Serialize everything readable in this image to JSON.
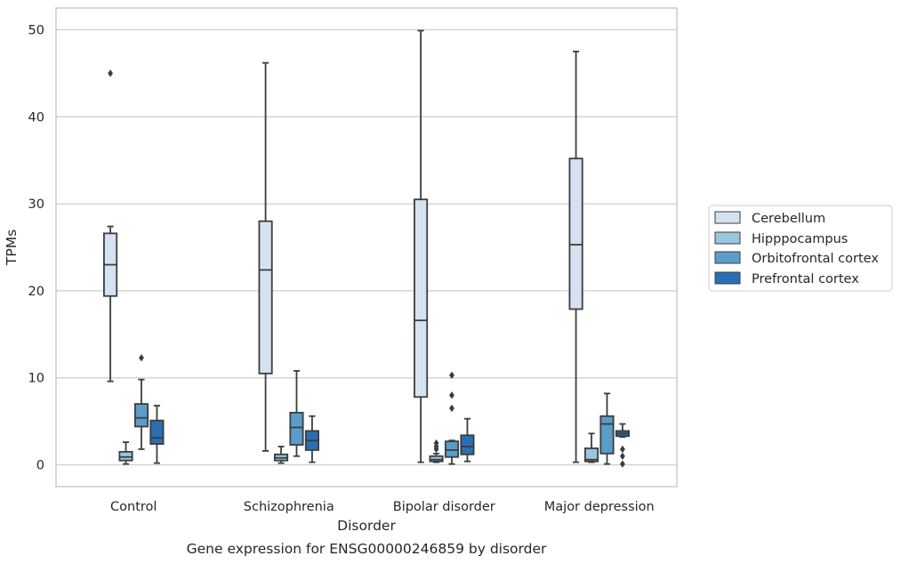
{
  "chart_data": {
    "type": "box",
    "caption": "Gene expression for ENSG00000246859 by disorder",
    "xlabel": "Disorder",
    "ylabel": "TPMs",
    "ylim": [
      -2.5,
      52.5
    ],
    "yticks": [
      0,
      10,
      20,
      30,
      40,
      50
    ],
    "grid": "horizontal",
    "legend_position": "outside-right",
    "categories": [
      "Control",
      "Schizophrenia",
      "Bipolar disorder",
      "Major depression"
    ],
    "series": [
      {
        "name": "Cerebellum",
        "color": "#d5e3f1",
        "boxes": [
          {
            "whisker_low": 9.6,
            "q1": 19.4,
            "median": 23.0,
            "q3": 26.6,
            "whisker_high": 27.4,
            "outliers": [
              45.0
            ]
          },
          {
            "whisker_low": 1.6,
            "q1": 10.5,
            "median": 22.4,
            "q3": 28.0,
            "whisker_high": 46.2,
            "outliers": []
          },
          {
            "whisker_low": 0.3,
            "q1": 7.8,
            "median": 16.6,
            "q3": 30.5,
            "whisker_high": 49.9,
            "outliers": []
          },
          {
            "whisker_low": 0.3,
            "q1": 17.9,
            "median": 25.3,
            "q3": 35.2,
            "whisker_high": 47.5,
            "outliers": []
          }
        ]
      },
      {
        "name": "Hipppocampus",
        "color": "#9ac6de",
        "boxes": [
          {
            "whisker_low": 0.1,
            "q1": 0.5,
            "median": 0.9,
            "q3": 1.5,
            "whisker_high": 2.6,
            "outliers": []
          },
          {
            "whisker_low": 0.2,
            "q1": 0.5,
            "median": 0.8,
            "q3": 1.2,
            "whisker_high": 2.1,
            "outliers": []
          },
          {
            "whisker_low": 0.3,
            "q1": 0.4,
            "median": 0.6,
            "q3": 1.0,
            "whisker_high": 1.3,
            "outliers": [
              1.8,
              2.1,
              2.5
            ]
          },
          {
            "whisker_low": 0.3,
            "q1": 0.4,
            "median": 0.6,
            "q3": 1.9,
            "whisker_high": 3.6,
            "outliers": []
          }
        ]
      },
      {
        "name": "Orbitofrontal cortex",
        "color": "#5a9dc9",
        "boxes": [
          {
            "whisker_low": 1.8,
            "q1": 4.4,
            "median": 5.4,
            "q3": 7.0,
            "whisker_high": 9.8,
            "outliers": [
              12.3
            ]
          },
          {
            "whisker_low": 1.0,
            "q1": 2.3,
            "median": 4.3,
            "q3": 6.0,
            "whisker_high": 10.8,
            "outliers": []
          },
          {
            "whisker_low": 0.1,
            "q1": 0.9,
            "median": 1.7,
            "q3": 2.7,
            "whisker_high": 2.8,
            "outliers": [
              6.5,
              8.0,
              10.3
            ]
          },
          {
            "whisker_low": 0.1,
            "q1": 1.3,
            "median": 4.7,
            "q3": 5.6,
            "whisker_high": 8.2,
            "outliers": []
          }
        ]
      },
      {
        "name": "Prefrontal cortex",
        "color": "#2a6eb3",
        "boxes": [
          {
            "whisker_low": 0.2,
            "q1": 2.4,
            "median": 3.1,
            "q3": 5.1,
            "whisker_high": 6.8,
            "outliers": []
          },
          {
            "whisker_low": 0.3,
            "q1": 1.7,
            "median": 2.8,
            "q3": 3.9,
            "whisker_high": 5.6,
            "outliers": []
          },
          {
            "whisker_low": 0.4,
            "q1": 1.2,
            "median": 2.1,
            "q3": 3.4,
            "whisker_high": 5.3,
            "outliers": []
          },
          {
            "whisker_low": 3.2,
            "q1": 3.3,
            "median": 3.6,
            "q3": 3.9,
            "whisker_high": 4.7,
            "outliers": [
              0.1,
              1.0,
              1.8
            ]
          }
        ]
      }
    ]
  }
}
